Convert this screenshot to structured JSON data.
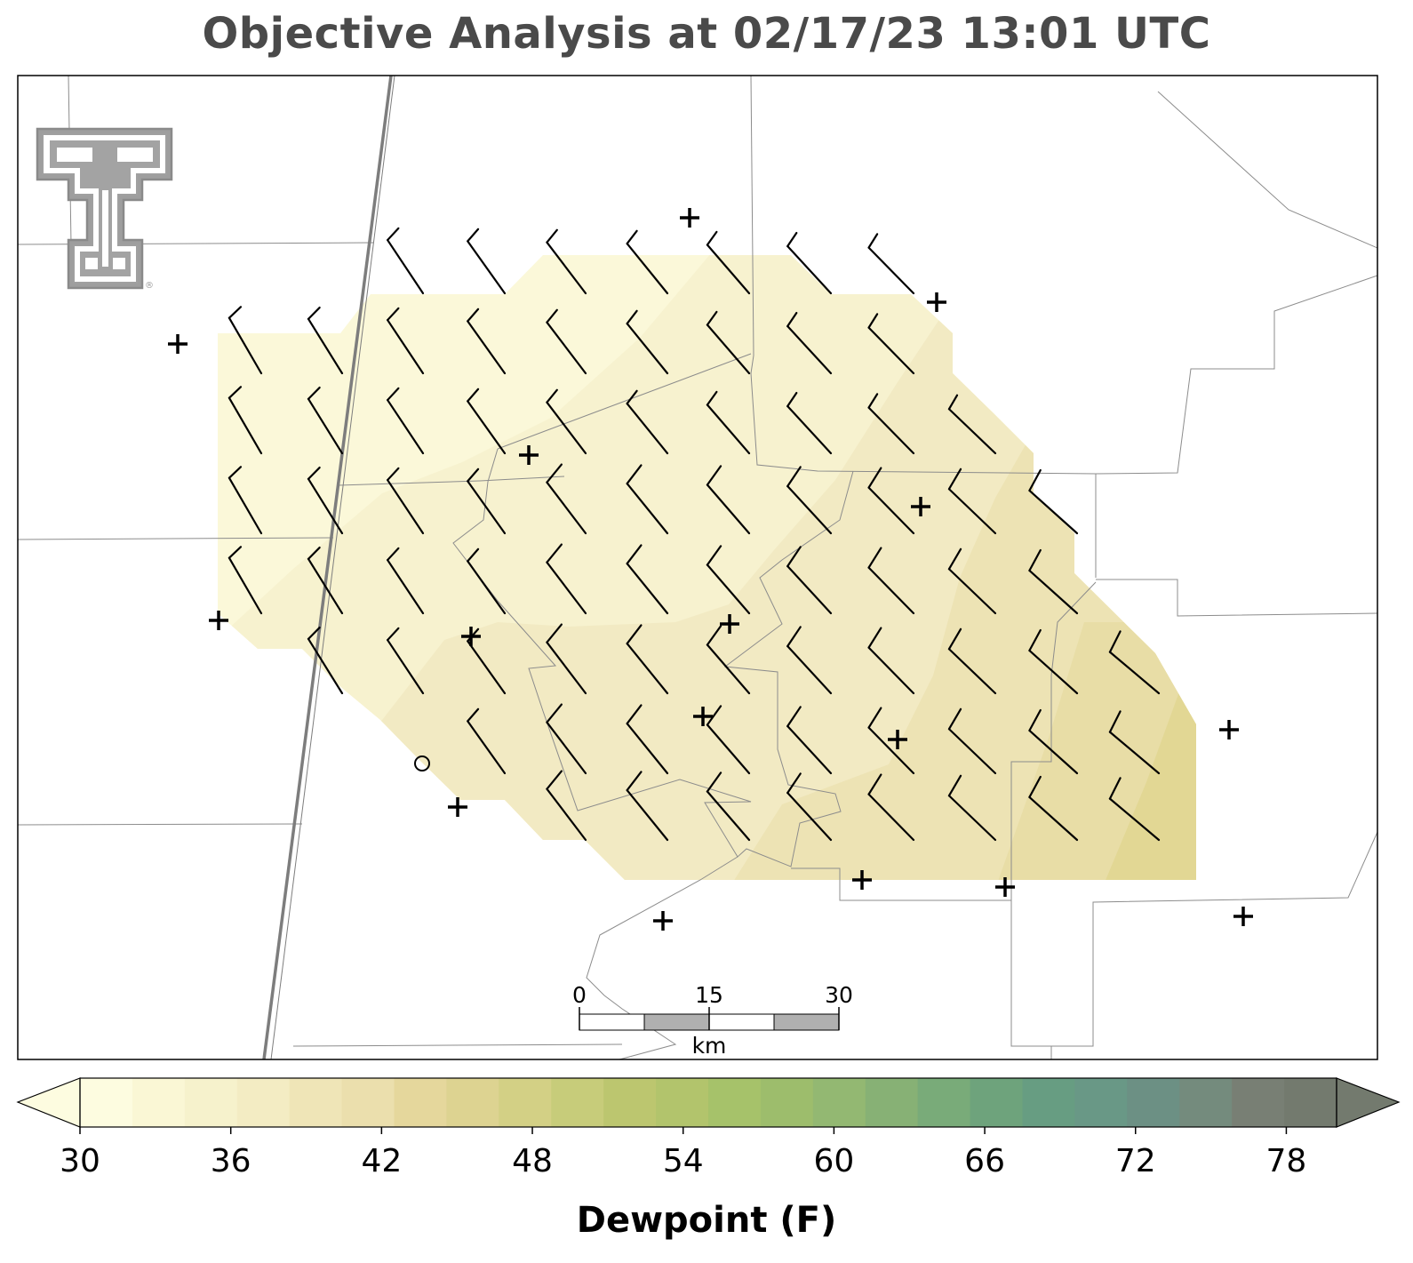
{
  "title": "Objective Analysis at 02/17/23 13:01 UTC",
  "colorbar": {
    "label": "Dewpoint (F)",
    "ticks": [
      "30",
      "36",
      "42",
      "48",
      "54",
      "60",
      "66",
      "72",
      "78"
    ],
    "min": 30,
    "max": 80,
    "step": 2,
    "extend": "both",
    "colors": [
      "#fdfce0",
      "#faf7d5",
      "#f6f2cc",
      "#f3ecc3",
      "#efe5b7",
      "#ebdfad",
      "#e5d79c",
      "#ddd391",
      "#d3d085",
      "#c7cc7a",
      "#bcc66f",
      "#b2c46c",
      "#a6c26a",
      "#9dbd6c",
      "#93b872",
      "#87b175",
      "#79ab79",
      "#6ea37c",
      "#679d82",
      "#699886",
      "#6c9084",
      "#748b7d",
      "#787f74",
      "#737a6e"
    ],
    "under_color": "#fdfce0",
    "over_color": "#737a6e"
  },
  "scale_bar": {
    "labels": [
      "0",
      "15",
      "30"
    ],
    "unit": "km"
  },
  "logo": {
    "name": "Texas Tech Double T logo",
    "mark": "®"
  },
  "station_symbol": "+",
  "missing_station_symbol": "o",
  "field_colors": {
    "light": "#fbf8d9",
    "mid1": "#f7f3d0",
    "mid2": "#f2eac4",
    "mid3": "#ede3b6",
    "dark": "#e4d899"
  }
}
